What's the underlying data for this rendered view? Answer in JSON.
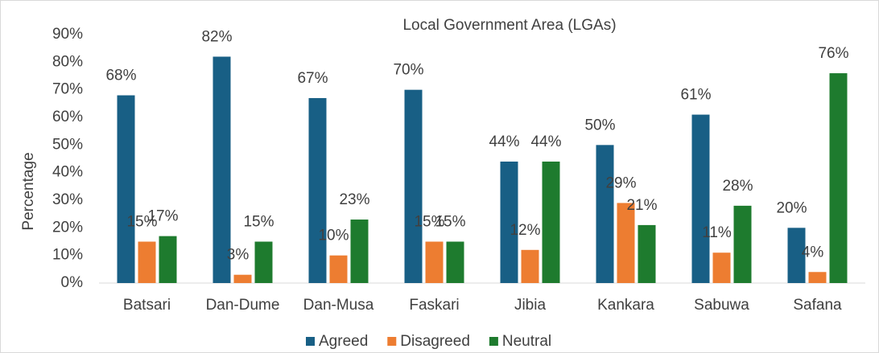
{
  "chart_data": {
    "type": "bar",
    "title": "Local Government Area (LGAs)",
    "y_label": "Percentage",
    "categories": [
      "Batsari",
      "Dan-Dume",
      "Dan-Musa",
      "Faskari",
      "Jibia",
      "Kankara",
      "Sabuwa",
      "Safana"
    ],
    "series": [
      {
        "name": "Agreed",
        "color": "#185f85",
        "values": [
          68,
          82,
          67,
          70,
          44,
          50,
          61,
          20
        ],
        "value_labels": [
          "68%",
          "82%",
          "67%",
          "70%",
          "44%",
          "50%",
          "61%",
          "20%"
        ]
      },
      {
        "name": "Disagreed",
        "color": "#ed7d31",
        "values": [
          15,
          3,
          10,
          15,
          12,
          29,
          11,
          4
        ],
        "value_labels": [
          "15%",
          "3%",
          "10%",
          "15%",
          "12%",
          "29%",
          "11%",
          "4%"
        ]
      },
      {
        "name": "Neutral",
        "color": "#1e7b2e",
        "values": [
          17,
          15,
          23,
          15,
          44,
          21,
          28,
          76
        ],
        "value_labels": [
          "17%",
          "15%",
          "23%",
          "15%",
          "44%",
          "21%",
          "28%",
          "76%"
        ]
      }
    ],
    "ylim": [
      0,
      90
    ],
    "yticks": [
      {
        "value": 0,
        "label": "0%"
      },
      {
        "value": 10,
        "label": "10%"
      },
      {
        "value": 20,
        "label": "20%"
      },
      {
        "value": 30,
        "label": "30%"
      },
      {
        "value": 40,
        "label": "40%"
      },
      {
        "value": 50,
        "label": "50%"
      },
      {
        "value": 60,
        "label": "60%"
      },
      {
        "value": 70,
        "label": "70%"
      },
      {
        "value": 80,
        "label": "80%"
      },
      {
        "value": 90,
        "label": "90%"
      }
    ],
    "grid": false,
    "legend": "bottom"
  }
}
